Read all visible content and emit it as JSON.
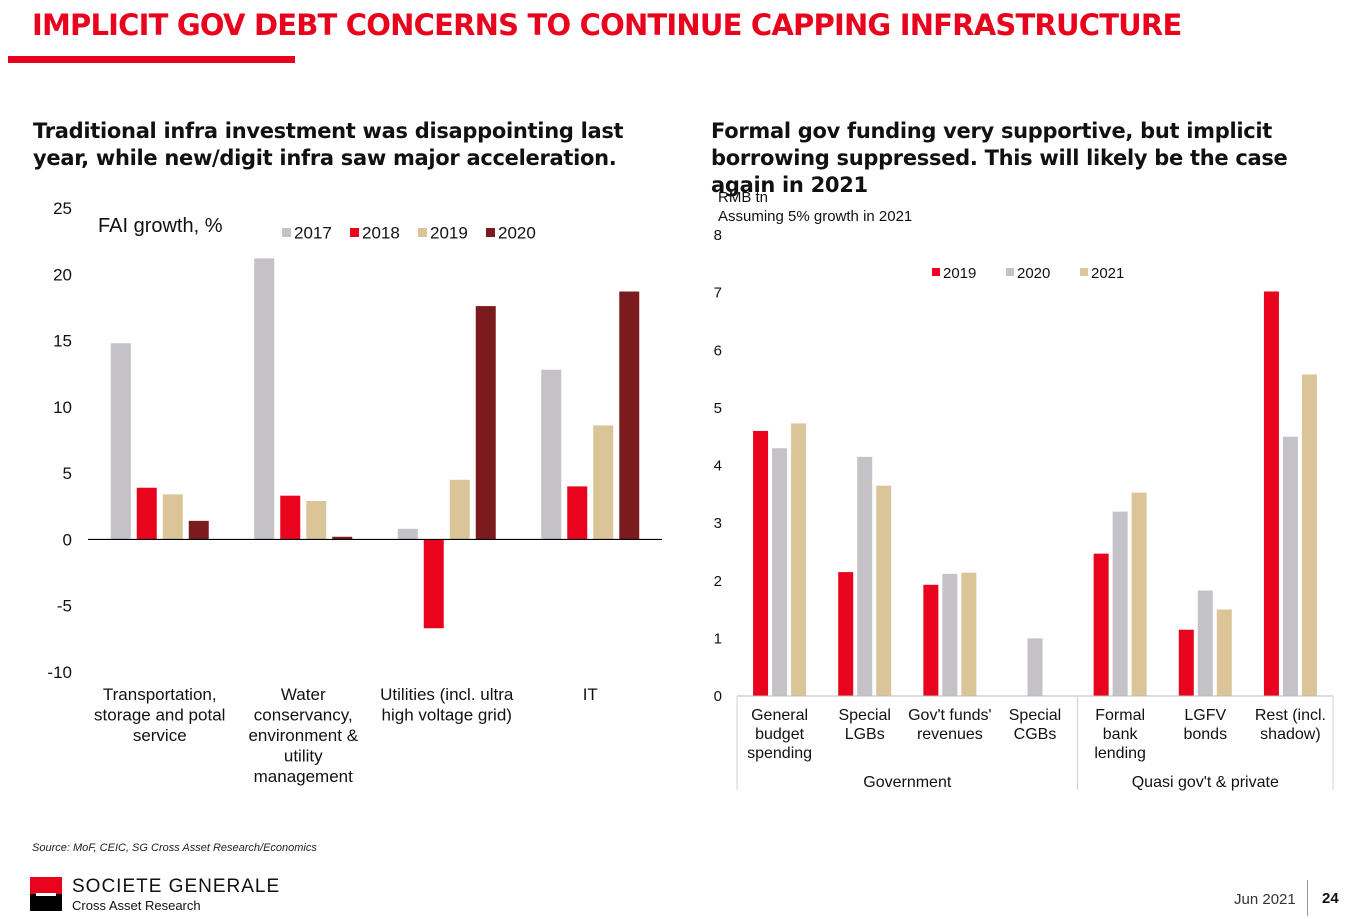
{
  "header": {
    "title": "IMPLICIT GOV DEBT CONCERNS TO CONTINUE CAPPING INFRASTRUCTURE"
  },
  "colors": {
    "accent": "#e9041e",
    "grey": "#c4c2c6",
    "tan": "#dbc598",
    "maroon": "#7b1b1e"
  },
  "chart_data": [
    {
      "type": "bar",
      "title": "Traditional infra investment was disappointing last year, while new/digit infra saw major acceleration.",
      "ylabel": "FAI growth, %",
      "categories": [
        [
          "Transportation,",
          "storage and potal",
          "service"
        ],
        [
          "Water",
          "conservancy,",
          "environment &",
          "utility",
          "management"
        ],
        [
          "Utilities (incl. ultra",
          "high voltage grid)"
        ],
        [
          "IT"
        ]
      ],
      "series": [
        {
          "name": "2017",
          "color": "#c4c2c6",
          "values": [
            14.8,
            21.2,
            0.8,
            12.8
          ]
        },
        {
          "name": "2018",
          "color": "#e9041e",
          "values": [
            3.9,
            3.3,
            -6.7,
            4.0
          ]
        },
        {
          "name": "2019",
          "color": "#dbc598",
          "values": [
            3.4,
            2.9,
            4.5,
            8.6
          ]
        },
        {
          "name": "2020",
          "color": "#7b1b1e",
          "values": [
            1.4,
            0.2,
            17.6,
            18.7
          ]
        }
      ],
      "ylim": [
        -10,
        25
      ],
      "yticks": [
        25,
        20,
        15,
        10,
        5,
        0,
        -5,
        -10
      ],
      "legend_position": "top",
      "grid": false
    },
    {
      "type": "bar",
      "title": "Formal gov funding very supportive, but implicit borrowing suppressed. This will likely be the case again in 2021",
      "unit_label": "RMB tn",
      "note": "Assuming 5% growth in 2021",
      "categories": [
        [
          "General",
          "budget",
          "spending"
        ],
        [
          "Special",
          "LGBs"
        ],
        [
          "Gov't funds'",
          "revenues"
        ],
        [
          "Special",
          "CGBs"
        ],
        [
          "Formal",
          "bank",
          "lending"
        ],
        [
          "LGFV",
          "bonds"
        ],
        [
          "Rest (incl.",
          "shadow)"
        ]
      ],
      "groups": [
        {
          "label": "Government",
          "span": [
            0,
            3
          ]
        },
        {
          "label": "Quasi gov't & private",
          "span": [
            4,
            6
          ]
        }
      ],
      "series": [
        {
          "name": "2019",
          "color": "#e9041e",
          "values": [
            4.6,
            2.15,
            1.93,
            0,
            2.47,
            1.15,
            7.02
          ]
        },
        {
          "name": "2020",
          "color": "#c4c2c6",
          "values": [
            4.3,
            4.15,
            2.12,
            1.0,
            3.2,
            1.83,
            4.5
          ]
        },
        {
          "name": "2021",
          "color": "#dbc598",
          "values": [
            4.73,
            3.65,
            2.14,
            0,
            3.53,
            1.5,
            5.58
          ]
        }
      ],
      "ylim": [
        0,
        8
      ],
      "yticks": [
        8,
        7,
        6,
        5,
        4,
        3,
        2,
        1,
        0
      ],
      "legend_position": "top",
      "grid": false
    }
  ],
  "footer": {
    "source": "Source: MoF, CEIC, SG Cross Asset Research/Economics",
    "brand": "SOCIETE GENERALE",
    "brand_sub": "Cross Asset Research",
    "date": "Jun 2021",
    "page": "24"
  }
}
